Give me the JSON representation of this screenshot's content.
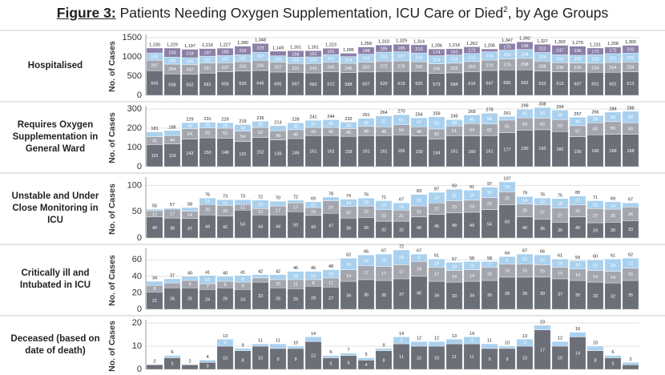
{
  "title_prefix": "Figure 3:",
  "title": "Patients Needing Oxygen Supplementation, ICU Care or Died",
  "title_sup": "2",
  "title_suffix": ", by Age Groups",
  "chart_data": [
    {
      "type": "bar",
      "label": "Hospitalised",
      "ylabel": "No. of Cases",
      "ylim": [
        0,
        1500
      ],
      "yticks": [
        0,
        500,
        1000,
        1500
      ],
      "grid": true,
      "series": [
        {
          "color": "#6b6f78",
          "values": [
            643,
            558,
            552,
            581,
            609,
            633,
            646,
            605,
            597,
            583,
            612,
            588,
            607,
            620,
            619,
            625,
            573,
            584,
            615,
            647,
            665,
            662,
            633,
            613,
            607,
            601,
            601,
            613
          ]
        },
        {
          "color": "#a3a6ae",
          "values": [
            267,
            254,
            247,
            257,
            237,
            243,
            266,
            257,
            231,
            243,
            249,
            245,
            253,
            272,
            278,
            250,
            245,
            252,
            262,
            270,
            279,
            298,
            258,
            236,
            236,
            234,
            254,
            254
          ]
        },
        {
          "color": "#a9d1ef",
          "values": [
            192,
            184,
            180,
            181,
            192,
            182,
            207,
            166,
            165,
            174,
            201,
            174,
            210,
            233,
            237,
            226,
            214,
            215,
            213,
            218,
            233,
            234,
            224,
            206,
            200,
            224,
            231,
            231
          ]
        },
        {
          "color": "#8c7fa8",
          "values": [
            128,
            233,
            218,
            197,
            189,
            222,
            229,
            121,
            168,
            161,
            161,
            88,
            188,
            185,
            195,
            213,
            174,
            163,
            172,
            71,
            170,
            198,
            212,
            247,
            236,
            172,
            172,
            202
          ]
        }
      ],
      "totals": [
        1230,
        1229,
        1197,
        1216,
        1227,
        1280,
        1348,
        1149,
        1161,
        1161,
        1223,
        1095,
        1258,
        1310,
        1329,
        1314,
        1206,
        1214,
        1262,
        1206,
        1347,
        1392,
        1327,
        1302,
        1279,
        1231,
        1258,
        1300
      ],
      "total_labels": [
        "1,230",
        "1,229",
        "1,197",
        "1,216",
        "1,227",
        "1,280",
        "1,348",
        "1,149",
        "1,161",
        "1,161",
        "1,223",
        "1,095",
        "1,258",
        "1,310",
        "1,329",
        "1,314",
        "1,206",
        "1,214",
        "1,262",
        "1,206",
        "1,347",
        "1,392",
        "1,327",
        "1,302",
        "1,279",
        "1,231",
        "1,258",
        "1,300"
      ]
    },
    {
      "type": "bar",
      "label": "Requires Oxygen Supplementation in General Ward",
      "ylabel": "No. of Cases",
      "ylim": [
        0,
        300
      ],
      "yticks": [
        0,
        100,
        200,
        300
      ],
      "grid": true,
      "series": [
        {
          "color": "#6b6f78",
          "values": [
            115,
            118,
            143,
            150,
            148,
            131,
            152,
            139,
            146,
            161,
            162,
            158,
            161,
            161,
            165,
            159,
            144,
            161,
            160,
            161,
            177,
            190,
            192,
            182,
            156,
            166,
            168,
            168
          ]
        },
        {
          "color": "#a3a6ae",
          "values": [
            41,
            44,
            54,
            52,
            52,
            54,
            52,
            48,
            46,
            43,
            42,
            40,
            48,
            46,
            54,
            48,
            52,
            51,
            64,
            61,
            65,
            64,
            60,
            63,
            57,
            62,
            66,
            60
          ]
        },
        {
          "color": "#a9d1ef",
          "values": [
            25,
            26,
            32,
            29,
            29,
            34,
            32,
            26,
            36,
            37,
            40,
            34,
            42,
            57,
            51,
            47,
            63,
            33,
            45,
            56,
            19,
            45,
            56,
            49,
            44,
            38,
            50,
            60
          ]
        }
      ],
      "totals": [
        181,
        188,
        229,
        231,
        229,
        219,
        236,
        213,
        228,
        241,
        244,
        232,
        251,
        264,
        270,
        254,
        259,
        245,
        269,
        278,
        261,
        299,
        308,
        294,
        257,
        266,
        284,
        288
      ]
    },
    {
      "type": "bar",
      "label": "Unstable and Under Close Monitoring in ICU",
      "ylabel": "No. of Cases",
      "ylim": [
        0,
        110
      ],
      "yticks": [
        0,
        50,
        100
      ],
      "grid": true,
      "series": [
        {
          "color": "#6b6f78",
          "values": [
            40,
            38,
            37,
            44,
            42,
            53,
            44,
            44,
            50,
            43,
            47,
            38,
            39,
            32,
            32,
            40,
            45,
            48,
            49,
            54,
            63,
            40,
            36,
            30,
            40,
            29,
            30,
            33
          ]
        },
        {
          "color": "#a3a6ae",
          "values": [
            12,
            17,
            14,
            20,
            20,
            11,
            12,
            17,
            17,
            15,
            24,
            22,
            22,
            22,
            21,
            21,
            22,
            23,
            23,
            23,
            25,
            25,
            27,
            27,
            23,
            27,
            25,
            26
          ]
        },
        {
          "color": "#a9d1ef",
          "values": [
            3,
            2,
            7,
            12,
            11,
            9,
            16,
            9,
            5,
            11,
            7,
            14,
            15,
            17,
            14,
            22,
            20,
            22,
            19,
            20,
            19,
            14,
            13,
            18,
            17,
            15,
            14,
            8
          ]
        }
      ],
      "totals": [
        55,
        57,
        58,
        76,
        73,
        73,
        72,
        70,
        72,
        69,
        78,
        74,
        76,
        71,
        67,
        83,
        87,
        93,
        91,
        97,
        107,
        79,
        76,
        75,
        80,
        71,
        69,
        67
      ]
    },
    {
      "type": "bar",
      "label": "Critically ill and Intubated in ICU",
      "ylabel": "No. of Cases",
      "ylim": [
        0,
        70
      ],
      "yticks": [
        0,
        20,
        40,
        60
      ],
      "grid": true,
      "series": [
        {
          "color": "#6b6f78",
          "values": [
            21,
            26,
            26,
            24,
            26,
            24,
            33,
            26,
            25,
            28,
            27,
            34,
            36,
            35,
            37,
            40,
            34,
            33,
            34,
            35,
            39,
            39,
            39,
            37,
            35,
            33,
            32,
            35
          ]
        },
        {
          "color": "#a3a6ae",
          "values": [
            8,
            6,
            9,
            7,
            8,
            9,
            5,
            10,
            11,
            8,
            11,
            14,
            17,
            17,
            17,
            18,
            17,
            14,
            14,
            16,
            16,
            16,
            15,
            14,
            14,
            14,
            14,
            15
          ]
        },
        {
          "color": "#a9d1ef",
          "values": [
            5,
            5,
            5,
            10,
            6,
            8,
            4,
            6,
            10,
            10,
            10,
            14,
            13,
            15,
            18,
            9,
            10,
            10,
            10,
            7,
            9,
            12,
            12,
            10,
            10,
            13,
            15,
            12
          ]
        }
      ],
      "totals": [
        34,
        37,
        40,
        41,
        40,
        41,
        42,
        42,
        46,
        46,
        48,
        62,
        66,
        67,
        72,
        67,
        61,
        57,
        58,
        58,
        64,
        67,
        66,
        61,
        59,
        60,
        61,
        62
      ]
    },
    {
      "type": "bar",
      "label": "Deceased (based on date of death)",
      "ylabel": "No. of Cases",
      "ylim": [
        0,
        20
      ],
      "yticks": [
        0,
        10,
        20
      ],
      "grid": true,
      "series": [
        {
          "color": "#6b6f78",
          "values": [
            2,
            5,
            2,
            3,
            10,
            8,
            10,
            9,
            9,
            12,
            5,
            6,
            4,
            8,
            11,
            10,
            10,
            11,
            11,
            9,
            9,
            10,
            17,
            10,
            14,
            8,
            5,
            2
          ]
        },
        {
          "color": "#a9d1ef",
          "values": [
            0,
            1,
            0,
            1,
            3,
            1,
            1,
            2,
            1,
            2,
            1,
            1,
            1,
            1,
            3,
            2,
            2,
            2,
            3,
            2,
            1,
            3,
            2,
            2,
            2,
            2,
            1,
            1
          ]
        }
      ],
      "totals": [
        2,
        6,
        2,
        4,
        13,
        9,
        11,
        11,
        10,
        14,
        6,
        7,
        5,
        9,
        14,
        12,
        12,
        13,
        14,
        11,
        10,
        13,
        19,
        12,
        16,
        10,
        6,
        3
      ]
    }
  ]
}
